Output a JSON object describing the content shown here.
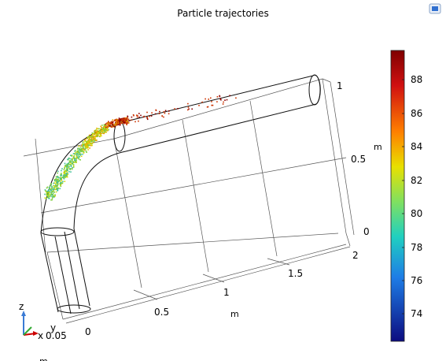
{
  "plot": {
    "title": "Particle trajectories",
    "axes": {
      "z_ticks": [
        "1",
        "0.5",
        "0"
      ],
      "z_unit": "m",
      "x_ticks": [
        "0",
        "0.5",
        "1",
        "1.5",
        "2"
      ],
      "x_unit": "m",
      "bottom_unit": "m"
    },
    "colorbar": {
      "ticks": [
        "88",
        "86",
        "84",
        "82",
        "80",
        "78",
        "76",
        "74"
      ],
      "min": 72.5,
      "max": 89.8
    },
    "triad": {
      "z_label": "z",
      "y_label": "y",
      "x_label": "x",
      "scale_label": "0.05"
    },
    "colors": {
      "hot": "#8b0000",
      "warm": "#cc3300",
      "mid": "#e8a200",
      "yellow": "#d8d800",
      "green": "#7ccd3a",
      "teal": "#3fbf9a"
    },
    "icons": {
      "corner": "graphics-window-icon"
    }
  }
}
